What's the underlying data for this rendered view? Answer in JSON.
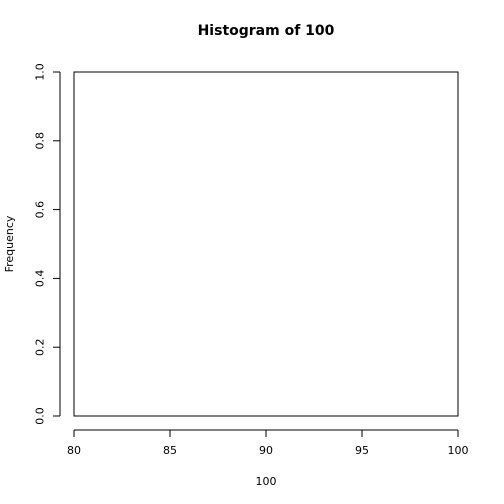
{
  "chart_data": {
    "type": "bar",
    "title": "Histogram of 100",
    "xlabel": "100",
    "ylabel": "Frequency",
    "xlim": [
      80,
      100
    ],
    "ylim": [
      0,
      1
    ],
    "x_ticks": [
      80,
      85,
      90,
      95,
      100
    ],
    "x_tick_labels": [
      "80",
      "85",
      "90",
      "95",
      "100"
    ],
    "y_ticks": [
      0,
      0.2,
      0.4,
      0.6,
      0.8,
      1
    ],
    "y_tick_labels": [
      "0.0",
      "0.2",
      "0.4",
      "0.6",
      "0.8",
      "1.0"
    ],
    "categories": [],
    "values": [],
    "grid": false,
    "box": true
  }
}
